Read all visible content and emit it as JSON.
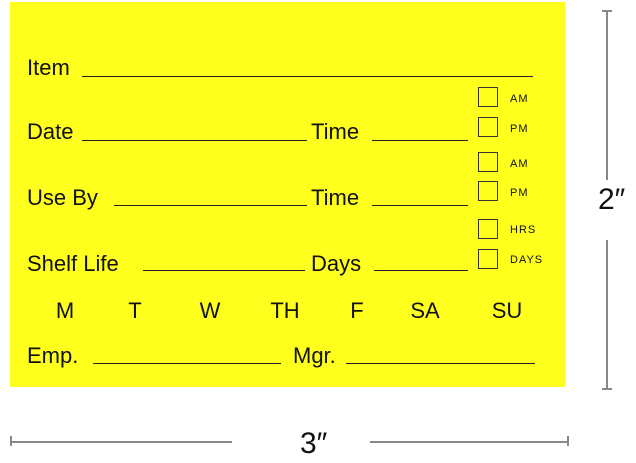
{
  "label": {
    "background_color": "#ffff1e",
    "item": "Item",
    "date": "Date",
    "time1": "Time",
    "use_by": "Use By",
    "time2": "Time",
    "shelf_life": "Shelf Life",
    "days_field": "Days",
    "checkboxes": [
      "AM",
      "PM",
      "AM",
      "PM",
      "HRS",
      "DAYS"
    ],
    "weekdays": [
      "M",
      "T",
      "W",
      "TH",
      "F",
      "SA",
      "SU"
    ],
    "emp": "Emp.",
    "mgr": "Mgr."
  },
  "dimensions": {
    "height": "2″",
    "width": "3″"
  }
}
